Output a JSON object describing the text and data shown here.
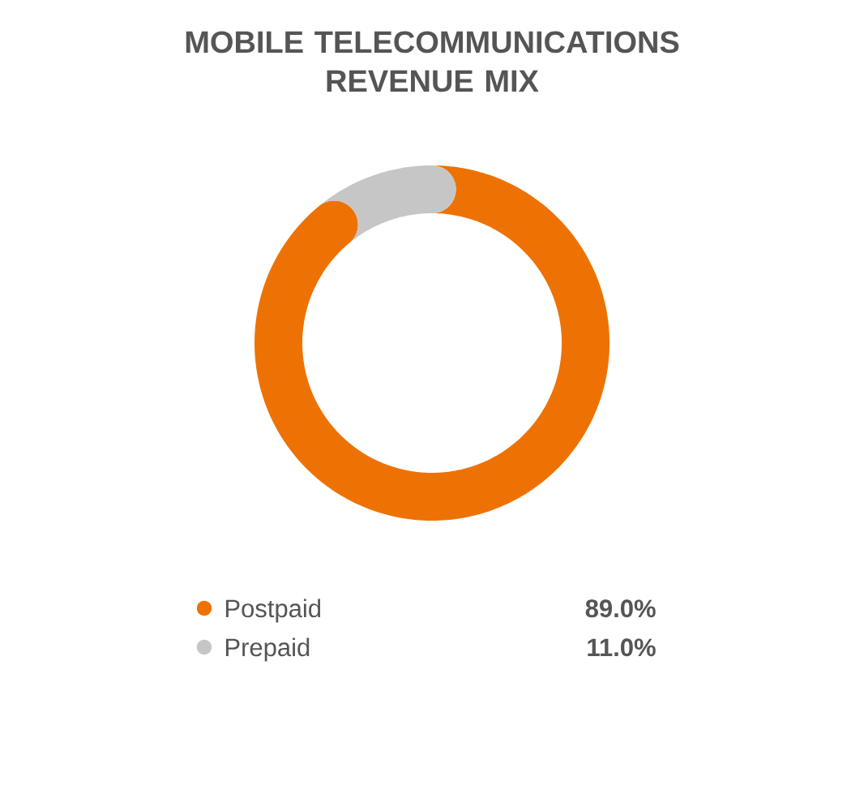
{
  "chart_data": {
    "type": "donut",
    "title": "MOBILE TELECOMMUNICATIONS REVENUE MIX",
    "categories": [
      "Postpaid",
      "Prepaid"
    ],
    "values": [
      89.0,
      11.0
    ],
    "colors": [
      "#ee7203",
      "#c6c6c6"
    ],
    "value_labels": [
      "89.0%",
      "11.0%"
    ],
    "legend": "bottom"
  }
}
